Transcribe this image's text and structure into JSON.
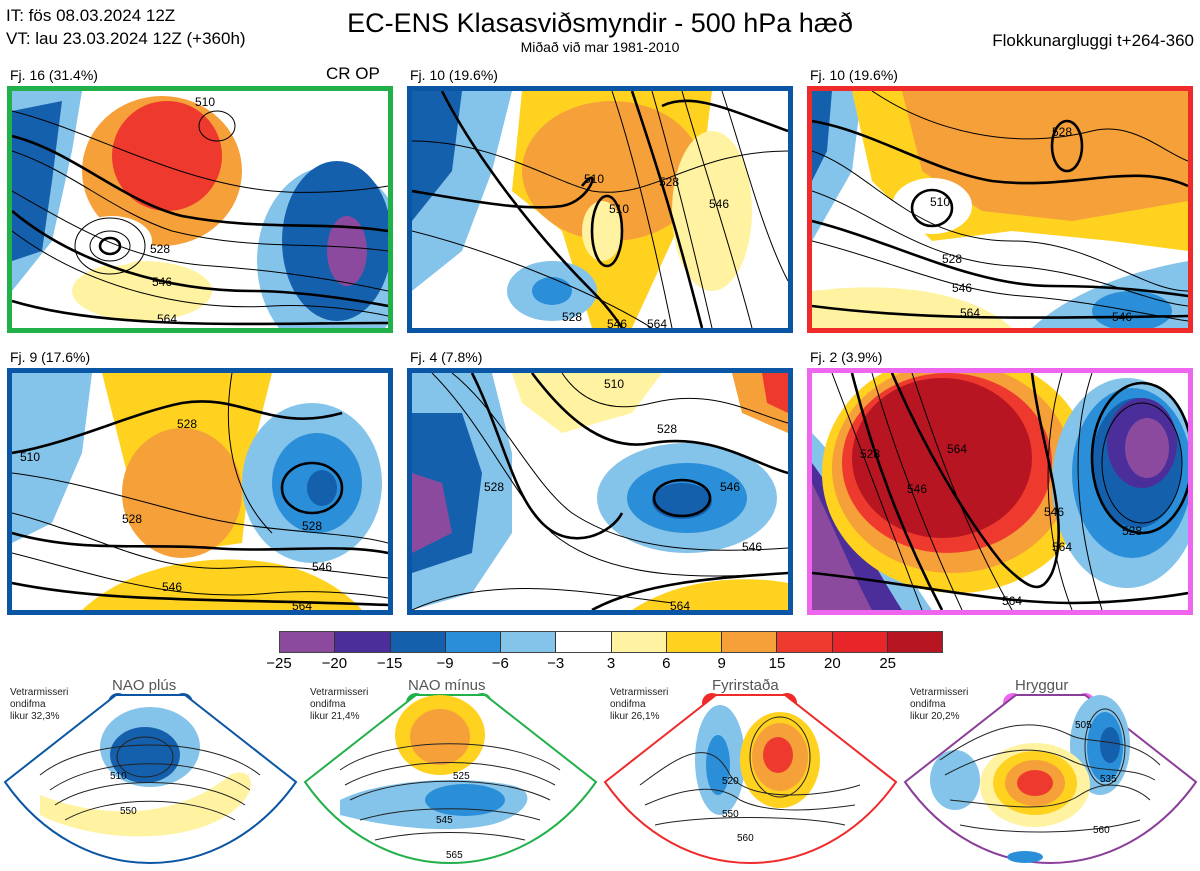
{
  "header": {
    "it": "IT: fös 08.03.2024 12Z",
    "vt": "VT: lau 23.03.2024 12Z  (+360h)",
    "title": "EC-ENS Klasasviðsmyndir - 500 hPa hæð",
    "subtitle": "Miðað við mar 1981-2010",
    "window": "Flokkunargluggi t+264-360"
  },
  "panels": [
    {
      "label": "Fj. 16 (31.4%)",
      "tag": "CR OP",
      "border": "#22b04a",
      "contours": [
        "510",
        "528",
        "546",
        "564"
      ]
    },
    {
      "label": "Fj. 10 (19.6%)",
      "tag": "",
      "border": "#0b56a4",
      "contours": [
        "510",
        "510",
        "528",
        "546",
        "528",
        "546",
        "564"
      ]
    },
    {
      "label": "Fj. 10 (19.6%)",
      "tag": "",
      "border": "#ee2a2a",
      "contours": [
        "510",
        "528",
        "528",
        "546",
        "564",
        "546"
      ]
    },
    {
      "label": "Fj. 9 (17.6%)",
      "tag": "",
      "border": "#0b56a4",
      "contours": [
        "510",
        "528",
        "528",
        "528",
        "546",
        "546",
        "564"
      ]
    },
    {
      "label": "Fj. 4 (7.8%)",
      "tag": "",
      "border": "#0b56a4",
      "contours": [
        "510",
        "528",
        "528",
        "546",
        "546",
        "564"
      ]
    },
    {
      "label": "Fj. 2 (3.9%)",
      "tag": "",
      "border": "#ee66ee",
      "contours": [
        "528",
        "546",
        "564",
        "528",
        "546",
        "564",
        "564"
      ]
    }
  ],
  "colorbar": {
    "colors": [
      "#8b4a9e",
      "#4b2e99",
      "#1560ad",
      "#2a8fd8",
      "#84c3ea",
      "#ffffff",
      "#fff2a0",
      "#ffd21f",
      "#f6a03a",
      "#ee3a2e",
      "#e8262a",
      "#b71522"
    ],
    "ticks": [
      "−25",
      "−20",
      "−15",
      "−9",
      "−6",
      "−3",
      "3",
      "6",
      "9",
      "15",
      "20",
      "25"
    ]
  },
  "regimes": [
    {
      "name": "NAO plús",
      "note": [
        "Vetrarmisseri",
        "ondifma",
        "likur 32,3%"
      ],
      "color": "#0b56a4",
      "contours": [
        "510",
        "550"
      ]
    },
    {
      "name": "NAO mínus",
      "note": [
        "Vetrarmisseri",
        "ondifma",
        "likur 21,4%"
      ],
      "color": "#22b04a",
      "contours": [
        "525",
        "545",
        "565"
      ]
    },
    {
      "name": "Fyrirstaða",
      "note": [
        "Vetrarmisseri",
        "ondifma",
        "likur 26,1%"
      ],
      "color": "#ee2a2a",
      "contours": [
        "520",
        "550",
        "560"
      ]
    },
    {
      "name": "Hryggur",
      "note": [
        "Vetrarmisseri",
        "ondifma",
        "likur 20,2%"
      ],
      "color": "#ee66ee",
      "contours": [
        "505",
        "535",
        "560"
      ]
    }
  ]
}
